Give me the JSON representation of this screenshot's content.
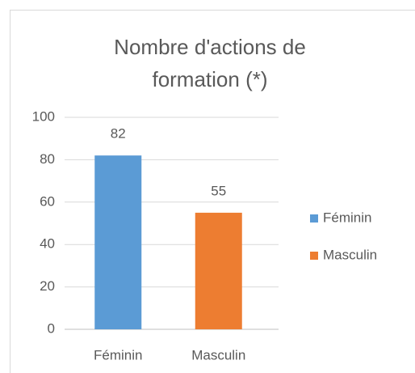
{
  "chart_data": {
    "type": "bar",
    "title": "Nombre d'actions de formation  (*)",
    "categories": [
      "Féminin",
      "Masculin"
    ],
    "series": [
      {
        "name": "Féminin",
        "color": "#5b9bd5",
        "values": [
          82,
          null
        ]
      },
      {
        "name": "Masculin",
        "color": "#ed7d31",
        "values": [
          null,
          55
        ]
      }
    ],
    "ylim": [
      0,
      100
    ],
    "yticks": [
      0,
      20,
      40,
      60,
      80,
      100
    ],
    "grid": true,
    "legend": "right"
  }
}
